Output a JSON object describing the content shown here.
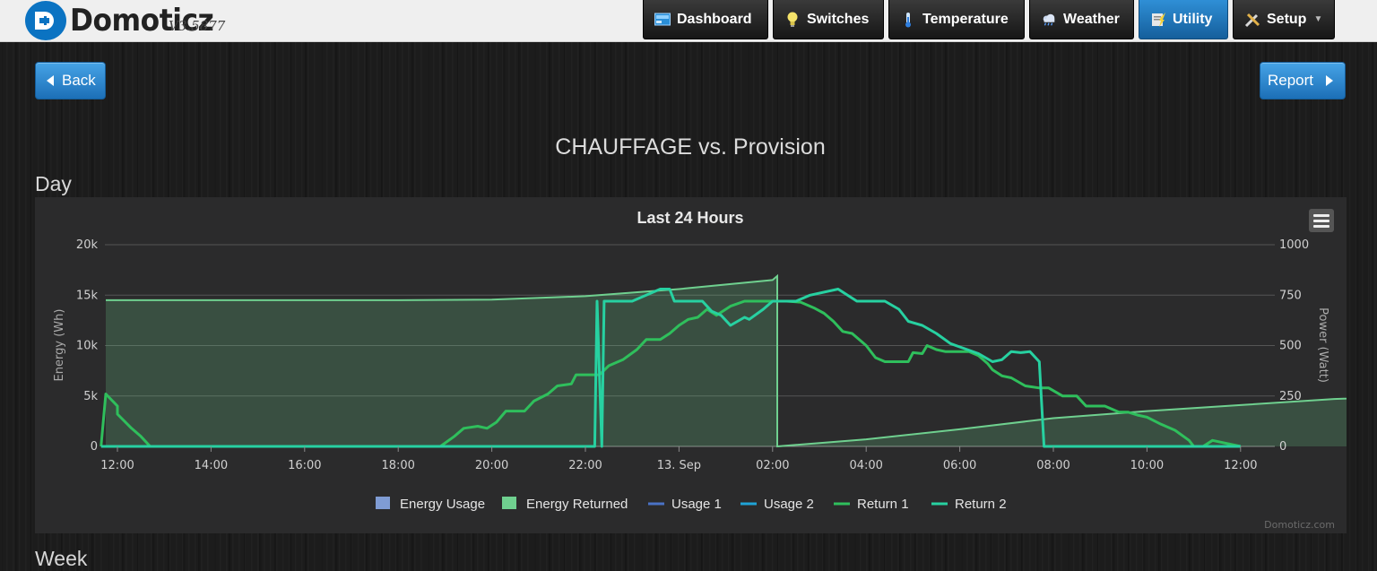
{
  "app": {
    "name": "Domoticz",
    "version": "V3.5877"
  },
  "nav": {
    "items": [
      {
        "label": "Dashboard",
        "icon": "dashboard-icon",
        "active": false
      },
      {
        "label": "Switches",
        "icon": "lightbulb-icon",
        "active": false
      },
      {
        "label": "Temperature",
        "icon": "thermometer-icon",
        "active": false
      },
      {
        "label": "Weather",
        "icon": "weather-cloud-icon",
        "active": false
      },
      {
        "label": "Utility",
        "icon": "utility-icon",
        "active": true
      },
      {
        "label": "Setup",
        "icon": "tools-icon",
        "active": false
      }
    ]
  },
  "buttons": {
    "back_label": "Back",
    "report_label": "Report"
  },
  "page": {
    "title": "CHAUFFAGE vs. Provision",
    "section_day": "Day",
    "section_week": "Week"
  },
  "colors": {
    "accent": "#1c7ac4",
    "energy_usage": "#7f9cd4",
    "energy_returned": "#6fd08f",
    "usage1": "#4a72c6",
    "usage2": "#1fa3d6",
    "return1": "#2fbf5c",
    "return2": "#27d1a1"
  },
  "chart_data": {
    "type": "line",
    "title": "Last 24 Hours",
    "credit": "Domoticz.com",
    "xlabel": "",
    "ylabel": "Energy (Wh)",
    "y2label": "Power (Watt)",
    "ylim": [
      0,
      20000
    ],
    "y2lim": [
      0,
      1000
    ],
    "y_ticks": [
      "0",
      "5k",
      "10k",
      "15k",
      "20k"
    ],
    "y2_ticks": [
      "0",
      "250",
      "500",
      "750",
      "1000"
    ],
    "x_ticks": [
      "12:00",
      "14:00",
      "16:00",
      "18:00",
      "20:00",
      "22:00",
      "13. Sep",
      "02:00",
      "04:00",
      "06:00",
      "08:00",
      "10:00",
      "12:00"
    ],
    "grid": true,
    "legend_position": "bottom",
    "series": [
      {
        "name": "Energy Usage",
        "kind": "area",
        "axis": "y",
        "points": []
      },
      {
        "name": "Energy Returned",
        "kind": "area",
        "axis": "y",
        "points": [
          [
            -0.25,
            14500
          ],
          [
            2,
            14500
          ],
          [
            4,
            14500
          ],
          [
            6,
            14500
          ],
          [
            8,
            14550
          ],
          [
            10,
            14900
          ],
          [
            12,
            15600
          ],
          [
            14,
            16500
          ],
          [
            14.1,
            16900
          ],
          [
            14.1,
            0
          ],
          [
            16,
            700
          ],
          [
            18,
            1700
          ],
          [
            20,
            2800
          ],
          [
            22,
            3500
          ],
          [
            24,
            4100
          ],
          [
            26,
            4700
          ],
          [
            28,
            5000
          ],
          [
            30,
            5150
          ],
          [
            32,
            5200
          ],
          [
            33.85,
            5200
          ]
        ]
      },
      {
        "name": "Usage 1",
        "kind": "line",
        "axis": "y2",
        "points": []
      },
      {
        "name": "Usage 2",
        "kind": "line",
        "axis": "y2",
        "points": []
      },
      {
        "name": "Return 1",
        "kind": "line",
        "axis": "y2",
        "points": [
          [
            -0.35,
            0
          ],
          [
            -0.25,
            260
          ],
          [
            0,
            200
          ],
          [
            0,
            160
          ],
          [
            0.3,
            90
          ],
          [
            0.5,
            50
          ],
          [
            0.7,
            0
          ],
          [
            6,
            0
          ],
          [
            6.9,
            0
          ],
          [
            7.2,
            50
          ],
          [
            7.4,
            90
          ],
          [
            7.7,
            100
          ],
          [
            7.9,
            90
          ],
          [
            8.1,
            120
          ],
          [
            8.3,
            175
          ],
          [
            8.7,
            175
          ],
          [
            8.9,
            225
          ],
          [
            9.2,
            260
          ],
          [
            9.4,
            300
          ],
          [
            9.7,
            310
          ],
          [
            9.8,
            355
          ],
          [
            10.3,
            355
          ],
          [
            10.5,
            400
          ],
          [
            10.8,
            430
          ],
          [
            11.1,
            480
          ],
          [
            11.3,
            530
          ],
          [
            11.6,
            530
          ],
          [
            11.8,
            560
          ],
          [
            12.0,
            600
          ],
          [
            12.2,
            630
          ],
          [
            12.4,
            640
          ],
          [
            12.6,
            680
          ],
          [
            12.8,
            650
          ],
          [
            13.1,
            695
          ],
          [
            13.4,
            720
          ],
          [
            13.9,
            720
          ],
          [
            14.1,
            720
          ],
          [
            14.3,
            720
          ],
          [
            14.6,
            715
          ],
          [
            14.9,
            685
          ],
          [
            15.1,
            660
          ],
          [
            15.3,
            620
          ],
          [
            15.5,
            570
          ],
          [
            15.7,
            560
          ],
          [
            15.9,
            520
          ],
          [
            16.0,
            500
          ],
          [
            16.2,
            440
          ],
          [
            16.4,
            420
          ],
          [
            16.6,
            420
          ],
          [
            16.9,
            420
          ],
          [
            17.0,
            465
          ],
          [
            17.2,
            460
          ],
          [
            17.3,
            500
          ],
          [
            17.5,
            480
          ],
          [
            17.7,
            470
          ],
          [
            17.9,
            470
          ],
          [
            18.2,
            470
          ],
          [
            18.4,
            450
          ],
          [
            18.6,
            410
          ],
          [
            18.7,
            380
          ],
          [
            18.9,
            350
          ],
          [
            19.1,
            340
          ],
          [
            19.4,
            300
          ],
          [
            19.7,
            290
          ],
          [
            19.9,
            290
          ],
          [
            20.2,
            250
          ],
          [
            20.5,
            250
          ],
          [
            20.7,
            200
          ],
          [
            21.1,
            200
          ],
          [
            21.4,
            170
          ],
          [
            21.6,
            170
          ],
          [
            21.8,
            155
          ],
          [
            22.0,
            145
          ],
          [
            22.3,
            110
          ],
          [
            22.6,
            80
          ],
          [
            22.9,
            30
          ],
          [
            23.0,
            0
          ],
          [
            23.2,
            0
          ],
          [
            23.4,
            30
          ],
          [
            24.0,
            0
          ]
        ]
      },
      {
        "name": "Return 2",
        "kind": "line",
        "axis": "y2",
        "points": [
          [
            -0.35,
            0
          ],
          [
            10.0,
            0
          ],
          [
            10.2,
            0
          ],
          [
            10.25,
            720
          ],
          [
            10.35,
            0
          ],
          [
            10.4,
            720
          ],
          [
            11.0,
            720
          ],
          [
            11.6,
            780
          ],
          [
            11.8,
            780
          ],
          [
            11.9,
            720
          ],
          [
            12.5,
            720
          ],
          [
            12.7,
            670
          ],
          [
            12.9,
            650
          ],
          [
            13.1,
            600
          ],
          [
            13.4,
            640
          ],
          [
            13.5,
            630
          ],
          [
            13.8,
            680
          ],
          [
            14.0,
            720
          ],
          [
            14.5,
            720
          ],
          [
            14.8,
            750
          ],
          [
            15.4,
            780
          ],
          [
            15.8,
            720
          ],
          [
            16.4,
            720
          ],
          [
            16.7,
            680
          ],
          [
            16.9,
            620
          ],
          [
            17.2,
            600
          ],
          [
            17.5,
            560
          ],
          [
            17.8,
            510
          ],
          [
            18.1,
            485
          ],
          [
            18.4,
            460
          ],
          [
            18.7,
            420
          ],
          [
            18.9,
            430
          ],
          [
            19.1,
            470
          ],
          [
            19.3,
            465
          ],
          [
            19.5,
            470
          ],
          [
            19.7,
            420
          ],
          [
            19.8,
            0
          ],
          [
            19.9,
            0
          ],
          [
            20.0,
            0
          ],
          [
            24.0,
            0
          ]
        ]
      }
    ]
  }
}
